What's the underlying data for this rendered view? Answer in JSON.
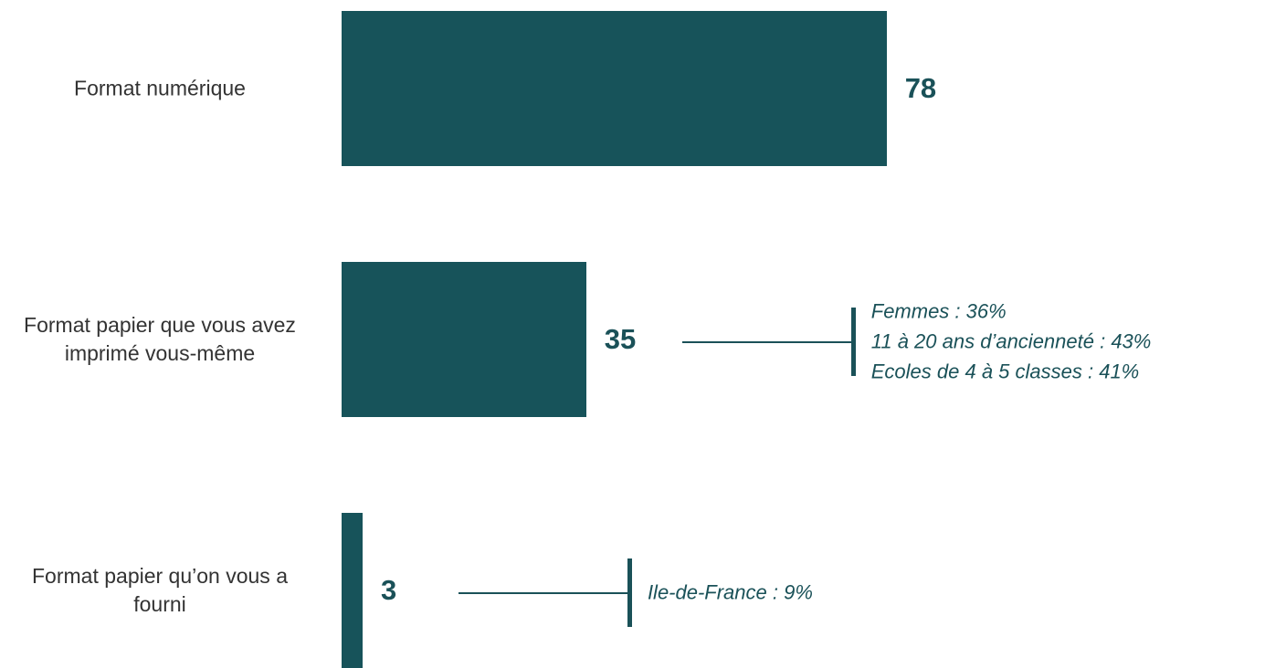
{
  "chart_data": {
    "type": "bar",
    "orientation": "horizontal",
    "categories": [
      "Format numérique",
      "Format papier que vous avez imprimé vous-même",
      "Format papier qu’on vous a fourni"
    ],
    "values": [
      78,
      35,
      3
    ],
    "color": "#17535a",
    "annotations": [
      null,
      [
        "Femmes : 36%",
        "11 à 20 ans d’ancienneté : 43%",
        "Ecoles de 4 à 5 classes : 41%"
      ],
      [
        "Ile-de-France : 9%"
      ]
    ]
  }
}
